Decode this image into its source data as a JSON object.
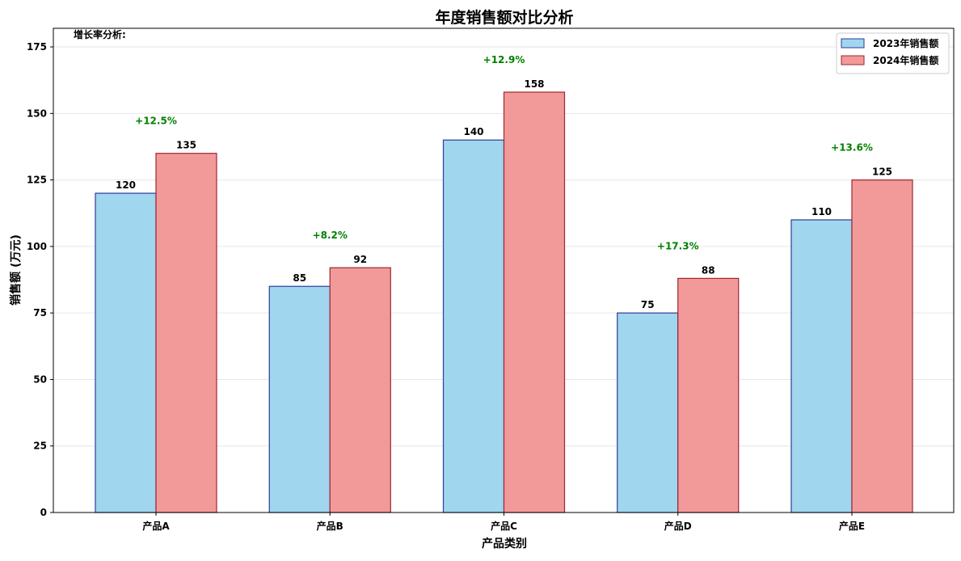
{
  "chart_data": {
    "type": "bar",
    "title": "年度销售额对比分析",
    "xlabel": "产品类别",
    "ylabel": "销售额 (万元)",
    "ylim": [
      0,
      182
    ],
    "yticks": [
      0,
      25,
      50,
      75,
      100,
      125,
      150,
      175
    ],
    "grid": "y",
    "legend_position": "top-right",
    "categories": [
      "产品A",
      "产品B",
      "产品C",
      "产品D",
      "产品E"
    ],
    "series": [
      {
        "name": "2023年销售额",
        "values": [
          120,
          85,
          140,
          75,
          110
        ],
        "color": "#a0d6ee",
        "edge": "#2d3c9a"
      },
      {
        "name": "2024年销售额",
        "values": [
          135,
          92,
          158,
          88,
          125
        ],
        "color": "#f29a9a",
        "edge": "#9e2630"
      }
    ],
    "growth_labels": [
      "+12.5%",
      "+8.2%",
      "+12.9%",
      "+17.3%",
      "+13.6%"
    ],
    "growth_color": "#008000",
    "note": "增长率分析:"
  }
}
